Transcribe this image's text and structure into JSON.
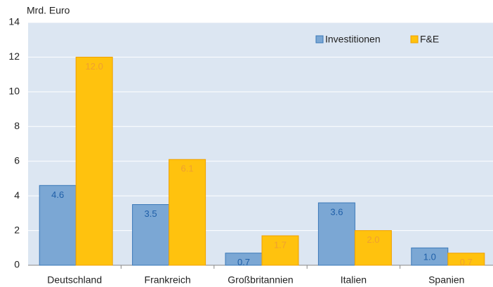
{
  "chart_data": {
    "type": "bar",
    "y_axis_label": "Mrd. Euro",
    "categories": [
      "Deutschland",
      "Frankreich",
      "Großbritannien",
      "Italien",
      "Spanien"
    ],
    "series": [
      {
        "name": "Investitionen",
        "color": "#7ba7d4",
        "values": [
          4.6,
          3.5,
          0.7,
          3.6,
          1.0
        ],
        "value_labels": [
          "4.6",
          "3.5",
          "0.7",
          "3.6",
          "1.0"
        ]
      },
      {
        "name": "F&E",
        "color": "#ffc20e",
        "values": [
          12.0,
          6.1,
          1.7,
          2.0,
          0.7
        ],
        "value_labels": [
          "12.0",
          "6.1",
          "1.7",
          "2.0",
          "0.7"
        ]
      }
    ],
    "ylim": [
      0,
      14
    ],
    "yticks": [
      0,
      2,
      4,
      6,
      8,
      10,
      12,
      14
    ],
    "grid": true,
    "legend": "upper right"
  }
}
